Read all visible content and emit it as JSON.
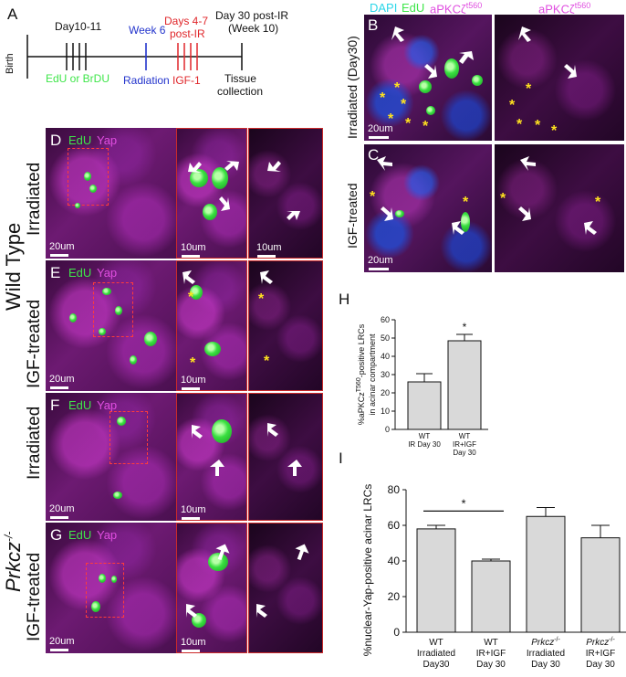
{
  "panel_letters": {
    "a": "A",
    "b": "B",
    "c": "C",
    "d": "D",
    "e": "E",
    "f": "F",
    "g": "G",
    "h": "H",
    "i": "I"
  },
  "timeline": {
    "birth": "Birth",
    "day10_11": "Day10-11",
    "edu": "EdU or BrDU",
    "week6": "Week 6",
    "radiation": "Radiation",
    "days47": "Days 4-7",
    "post_ir": "post-IR",
    "igf": "IGF-1",
    "day30": "Day 30 post-IR",
    "week10": "(Week 10)",
    "tissue": "Tissue",
    "collection": "collection"
  },
  "colors": {
    "green": "#3fe64a",
    "blue": "#2233cc",
    "red": "#e0262a",
    "magenta": "#e04ee0",
    "cyan": "#2bd6e8",
    "star": "#ffe21f",
    "bar_fill": "#d9d9d9"
  },
  "bc": {
    "header_dapi": "DAPI",
    "header_edu": "EdU",
    "header_apkc": "aPKCζ",
    "header_apkc_sup": "t560",
    "header_apkc2": "aPKCζ",
    "header_apkc2_sup": "t560",
    "row_b": "Irradiated (Day30)",
    "row_c": "IGF-treated",
    "scale_b": "20um",
    "scale_c": "20um"
  },
  "grid": {
    "wild_type": "Wild Type",
    "prkcz_base": "Prkcz",
    "prkcz_sup": "-/-",
    "row_d": "Irradiated",
    "row_e": "IGF-treated",
    "row_f": "Irradiated",
    "row_g": "IGF-treated",
    "label_edu": "EdU",
    "label_yap": "Yap",
    "scale_20": "20um",
    "scale_10": "10um"
  },
  "chart_data": [
    {
      "type": "bar",
      "panel": "H",
      "ylabel": "%aPKCz T560-positive LRCs in acinar compartment",
      "ylabel_line1": "%aPKCz",
      "ylabel_sup": "T560",
      "ylabel_line1_end": "-positive LRCs",
      "ylabel_line2": "in acinar compartment",
      "categories": [
        [
          "WT",
          "IR Day 30"
        ],
        [
          "WT",
          "IR+IGF",
          "Day 30"
        ]
      ],
      "values": [
        26,
        48.5
      ],
      "errors": [
        4.5,
        3.5
      ],
      "ylim": [
        0,
        60
      ],
      "yticks": [
        0,
        10,
        20,
        30,
        40,
        50,
        60
      ],
      "significance": [
        {
          "over": 1,
          "label": "*"
        }
      ]
    },
    {
      "type": "bar",
      "panel": "I",
      "ylabel": "%nuclear-Yap-positive acinar LRCs",
      "categories": [
        [
          "WT",
          "Irradiated",
          "Day30"
        ],
        [
          "WT",
          "IR+IGF",
          "Day 30"
        ],
        [
          "Prkcz",
          "Irradiated",
          "Day 30"
        ],
        [
          "Prkcz",
          "IR+IGF",
          "Day 30"
        ]
      ],
      "category_sup": [
        "",
        "",
        "-/-",
        "-/-"
      ],
      "values": [
        58,
        40,
        65,
        53
      ],
      "errors": [
        2,
        1,
        5,
        7
      ],
      "ylim": [
        0,
        80
      ],
      "yticks": [
        0,
        20,
        40,
        60,
        80
      ],
      "significance": [
        {
          "between": [
            0,
            1
          ],
          "label": "*"
        }
      ]
    }
  ]
}
